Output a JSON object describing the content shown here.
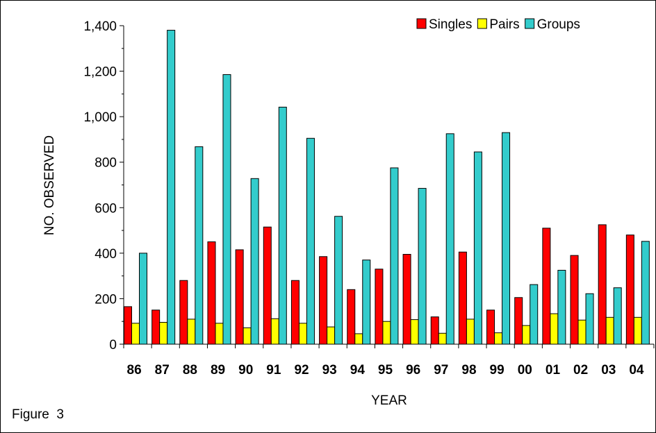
{
  "figure_label": "Figure  3",
  "chart_data": {
    "type": "bar",
    "xlabel": "YEAR",
    "ylabel": "NO. OBSERVED",
    "ylim": [
      0,
      1400
    ],
    "yticks": [
      0,
      200,
      400,
      600,
      800,
      1000,
      1200,
      1400
    ],
    "ytick_labels": [
      "0",
      "200",
      "400",
      "600",
      "800",
      "1,000",
      "1,200",
      "1,400"
    ],
    "grid": false,
    "legend_position": "top-right",
    "categories": [
      "86",
      "87",
      "88",
      "89",
      "90",
      "91",
      "92",
      "93",
      "94",
      "95",
      "96",
      "97",
      "98",
      "99",
      "00",
      "01",
      "02",
      "03",
      "04"
    ],
    "series": [
      {
        "name": "Singles",
        "color": "#ff0000",
        "values": [
          165,
          150,
          280,
          450,
          415,
          515,
          280,
          385,
          240,
          330,
          395,
          120,
          405,
          150,
          205,
          510,
          390,
          525,
          480
        ]
      },
      {
        "name": "Pairs",
        "color": "#ffff00",
        "values": [
          92,
          96,
          110,
          92,
          72,
          112,
          92,
          76,
          46,
          100,
          108,
          48,
          110,
          50,
          82,
          134,
          106,
          118,
          118
        ]
      },
      {
        "name": "Groups",
        "color": "#33cccc",
        "values": [
          400,
          1380,
          868,
          1185,
          728,
          1042,
          905,
          562,
          370,
          775,
          685,
          925,
          845,
          930,
          262,
          325,
          222,
          248,
          452
        ]
      }
    ]
  }
}
